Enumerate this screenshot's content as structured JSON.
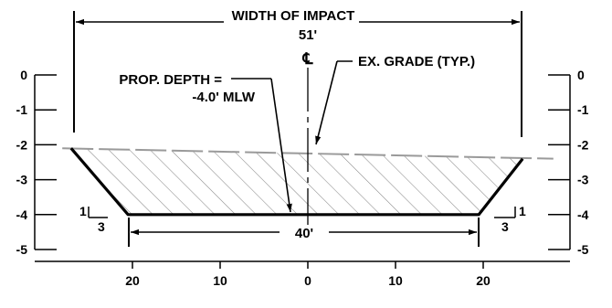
{
  "width_label": "WIDTH OF IMPACT",
  "width_value": "51'",
  "centerline_symbol": "℄",
  "ex_grade_label": "EX. GRADE (TYP.)",
  "prop_depth_line1": "PROP. DEPTH =",
  "prop_depth_line2": "-4.0' MLW",
  "bottom_width_label": "40'",
  "slope_left": {
    "rise": "1",
    "run": "3"
  },
  "slope_right": {
    "rise": "1",
    "run": "3"
  },
  "left_axis_ticks": [
    "0",
    "-1",
    "-2",
    "-3",
    "-4",
    "-5"
  ],
  "right_axis_ticks": [
    "0",
    "-1",
    "-2",
    "-3",
    "-4",
    "-5"
  ],
  "bottom_axis_ticks": [
    "20",
    "10",
    "0",
    "10",
    "20"
  ],
  "colors": {
    "line": "#000000",
    "existing_grade": "#9a9a9a",
    "hatch": "#8a8a8a"
  },
  "chart_data": {
    "type": "cross-section",
    "elevation_range": [
      -5,
      0
    ],
    "elevation_unit": "ft MLW",
    "x_ticks": [
      -20,
      -10,
      0,
      10,
      20
    ],
    "proposed_section": [
      {
        "x": -27,
        "y": -2.1
      },
      {
        "x": -20.5,
        "y": -4.0
      },
      {
        "x": 19.5,
        "y": -4.0
      },
      {
        "x": 24.5,
        "y": -2.4
      }
    ],
    "existing_grade": [
      {
        "x": -28,
        "y": -2.1
      },
      {
        "x": 28,
        "y": -2.4
      }
    ],
    "proposed_depth": -4.0,
    "bottom_width": 40,
    "impact_width": 51,
    "side_slope": "1:3"
  }
}
